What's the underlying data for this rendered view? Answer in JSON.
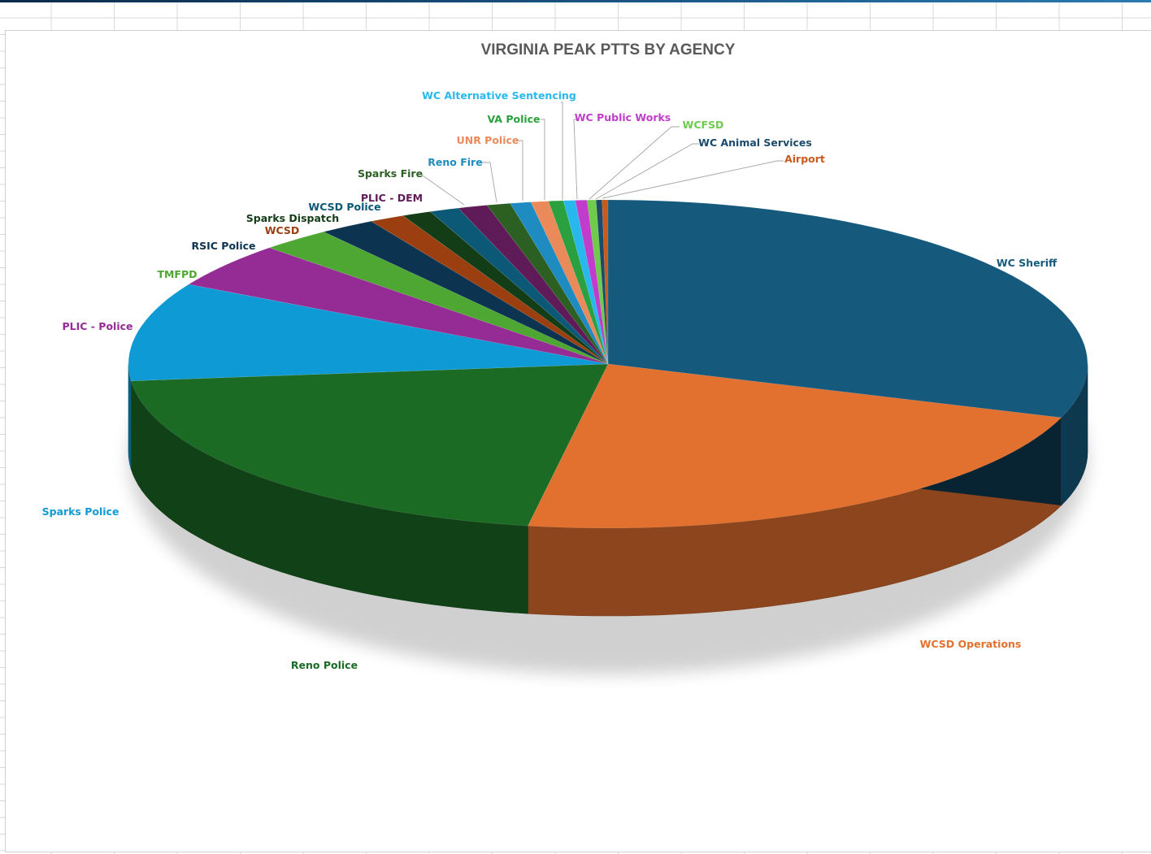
{
  "chart_data": {
    "type": "pie",
    "title": "VIRGINIA PEAK PTTS BY AGENCY",
    "start_direction": "top",
    "order": "clockwise",
    "slices": [
      {
        "label": "WC Sheriff",
        "value": 30.6,
        "color": "#155a7c"
      },
      {
        "label": "WCSD Operations",
        "value": 22.6,
        "color": "#e2702f"
      },
      {
        "label": "Reno Police",
        "value": 20.9,
        "color": "#1b6b25"
      },
      {
        "label": "Sparks Police",
        "value": 9.8,
        "color": "#0e9bd5"
      },
      {
        "label": "PLIC - Police",
        "value": 4.5,
        "color": "#952b94"
      },
      {
        "label": "TMFPD",
        "value": 2.4,
        "color": "#4ea733"
      },
      {
        "label": "RSIC Police",
        "value": 1.9,
        "color": "#0c3350"
      },
      {
        "label": "WCSD",
        "value": 1.2,
        "color": "#9b3f10"
      },
      {
        "label": "Sparks Dispatch",
        "value": 1.0,
        "color": "#123d17"
      },
      {
        "label": "WCSD Police",
        "value": 1.0,
        "color": "#0b5877"
      },
      {
        "label": "PLIC - DEM",
        "value": 1.0,
        "color": "#5f1a58"
      },
      {
        "label": "Sparks Fire",
        "value": 0.8,
        "color": "#2c5f22"
      },
      {
        "label": "Reno Fire",
        "value": 0.7,
        "color": "#1e8cc0"
      },
      {
        "label": "UNR Police",
        "value": 0.6,
        "color": "#ea8a5a"
      },
      {
        "label": "VA Police",
        "value": 0.5,
        "color": "#2aa03e"
      },
      {
        "label": "WC Alternative Sentencing",
        "value": 0.4,
        "color": "#29b8ee"
      },
      {
        "label": "WC Public Works",
        "value": 0.4,
        "color": "#c23ccc"
      },
      {
        "label": "WCFSD",
        "value": 0.3,
        "color": "#6ecb4c"
      },
      {
        "label": "WC Animal Services",
        "value": 0.2,
        "color": "#1b4a6a"
      },
      {
        "label": "Airport",
        "value": 0.2,
        "color": "#c85a1e"
      }
    ]
  }
}
